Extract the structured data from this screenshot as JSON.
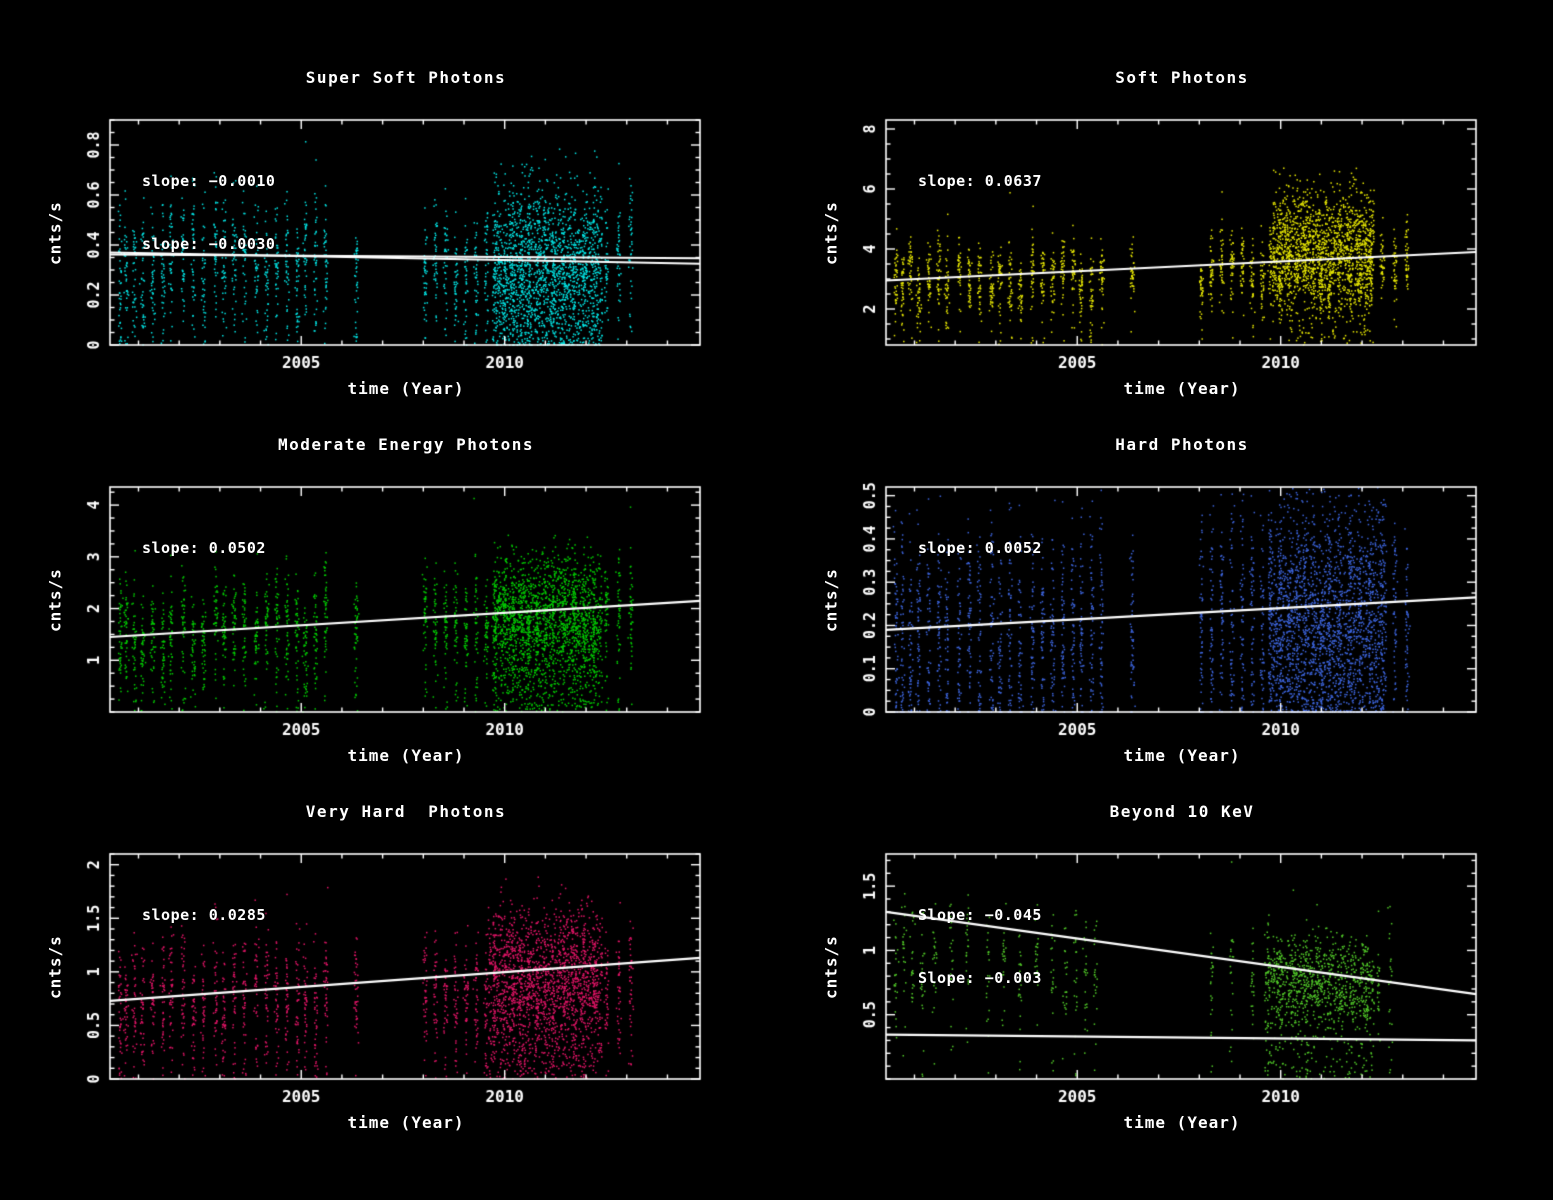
{
  "figure": {
    "background": "#000000",
    "axis_color": "#FFFFFF",
    "trend_color": "#FFFFFF"
  },
  "chart_data": [
    {
      "type": "scatter",
      "title": "Super Soft Photons",
      "xlabel": "time (Year)",
      "ylabel": "cnts/s",
      "point_color": "#00E4E4",
      "slope_labels": [
        "slope: −0.0010",
        "slope: −0.0030"
      ],
      "xlim": [
        2000.3,
        2014.8
      ],
      "ylim": [
        0,
        0.9
      ],
      "xticks": [
        2005,
        2010
      ],
      "yticks": [
        0,
        0.2,
        0.4,
        0.6,
        0.8
      ],
      "ytick_labels": [
        "0",
        "0.2",
        "0.4",
        "0.6",
        "0.8"
      ],
      "ytick_minor": 0.05,
      "trend_lines": [
        {
          "y_start": 0.362,
          "y_end": 0.347
        },
        {
          "y_start": 0.37,
          "y_end": 0.325
        }
      ],
      "scatter": {
        "seed": 11,
        "points_per_epoch": 40,
        "epochs": [
          2000.55,
          2000.7,
          2000.9,
          2001.1,
          2001.35,
          2001.6,
          2001.8,
          2002.1,
          2002.35,
          2002.6,
          2002.9,
          2003.1,
          2003.35,
          2003.6,
          2003.9,
          2004.15,
          2004.4,
          2004.65,
          2004.9,
          2005.1,
          2005.35,
          2005.6,
          2006.35,
          2008.05,
          2008.3,
          2008.55,
          2008.8,
          2009.05,
          2009.3,
          2009.55,
          2009.75,
          2010.0,
          2010.2,
          2010.4,
          2010.6,
          2010.8,
          2011.0,
          2011.2,
          2011.45,
          2011.7,
          2011.95,
          2012.2,
          2012.5,
          2012.8,
          2013.1
        ],
        "mean_start": 0.34,
        "mean_end": 0.33,
        "spread": 0.12,
        "epoch_offset": 0.06,
        "tail_fraction": 0.22,
        "blob": {
          "x_start": 2009.7,
          "x_end": 2012.4,
          "n": 1600,
          "mean": 0.33,
          "spread": 0.16
        }
      }
    },
    {
      "type": "scatter",
      "title": "Soft Photons",
      "xlabel": "time (Year)",
      "ylabel": "cnts/s",
      "point_color": "#E6E600",
      "slope_labels": [
        "slope: 0.0637"
      ],
      "xlim": [
        2000.3,
        2014.8
      ],
      "ylim": [
        0.8,
        8.3
      ],
      "xticks": [
        2005,
        2010
      ],
      "yticks": [
        2,
        4,
        6,
        8
      ],
      "ytick_labels": [
        "2",
        "4",
        "6",
        "8"
      ],
      "ytick_minor": 0.5,
      "trend_lines": [
        {
          "y_start": 2.95,
          "y_end": 3.9
        }
      ],
      "scatter": {
        "seed": 22,
        "points_per_epoch": 40,
        "epochs": [
          2000.55,
          2000.7,
          2000.9,
          2001.1,
          2001.35,
          2001.6,
          2001.8,
          2002.1,
          2002.35,
          2002.6,
          2002.9,
          2003.1,
          2003.35,
          2003.6,
          2003.9,
          2004.15,
          2004.4,
          2004.65,
          2004.9,
          2005.1,
          2005.35,
          2005.6,
          2006.35,
          2008.05,
          2008.3,
          2008.55,
          2008.8,
          2009.05,
          2009.3,
          2009.55,
          2009.75,
          2010.0,
          2010.2,
          2010.4,
          2010.6,
          2010.8,
          2011.0,
          2011.2,
          2011.45,
          2011.7,
          2011.95,
          2012.2,
          2012.5,
          2012.8,
          2013.1
        ],
        "mean_start": 2.9,
        "mean_end": 3.4,
        "spread": 0.55,
        "epoch_offset": 0.45,
        "tail_fraction": 0.1,
        "blob": {
          "x_start": 2009.8,
          "x_end": 2012.3,
          "n": 1500,
          "mean": 4.1,
          "spread": 0.95
        }
      }
    },
    {
      "type": "scatter",
      "title": "Moderate Energy Photons",
      "xlabel": "time (Year)",
      "ylabel": "cnts/s",
      "point_color": "#00CC00",
      "slope_labels": [
        "slope: 0.0502"
      ],
      "xlim": [
        2000.3,
        2014.8
      ],
      "ylim": [
        0,
        4.35
      ],
      "xticks": [
        2005,
        2010
      ],
      "yticks": [
        1,
        2,
        3,
        4
      ],
      "ytick_labels": [
        "1",
        "2",
        "3",
        "4"
      ],
      "ytick_minor": 0.25,
      "trend_lines": [
        {
          "y_start": 1.45,
          "y_end": 2.15
        }
      ],
      "scatter": {
        "seed": 33,
        "points_per_epoch": 45,
        "epochs": [
          2000.55,
          2000.7,
          2000.9,
          2001.1,
          2001.35,
          2001.6,
          2001.8,
          2002.1,
          2002.35,
          2002.6,
          2002.9,
          2003.1,
          2003.35,
          2003.6,
          2003.9,
          2004.15,
          2004.4,
          2004.65,
          2004.9,
          2005.1,
          2005.35,
          2005.6,
          2006.35,
          2008.05,
          2008.3,
          2008.55,
          2008.8,
          2009.05,
          2009.3,
          2009.55,
          2009.75,
          2010.0,
          2010.2,
          2010.4,
          2010.6,
          2010.8,
          2011.0,
          2011.2,
          2011.45,
          2011.7,
          2011.95,
          2012.2,
          2012.5,
          2012.8,
          2013.1
        ],
        "mean_start": 1.5,
        "mean_end": 2.0,
        "spread": 0.45,
        "epoch_offset": 0.3,
        "tail_fraction": 0.2,
        "blob": {
          "x_start": 2009.7,
          "x_end": 2012.4,
          "n": 1600,
          "mean": 1.9,
          "spread": 0.6
        }
      }
    },
    {
      "type": "scatter",
      "title": "Hard Photons",
      "xlabel": "time (Year)",
      "ylabel": "cnts/s",
      "point_color": "#3C64DC",
      "slope_labels": [
        "slope: 0.0052"
      ],
      "xlim": [
        2000.3,
        2014.8
      ],
      "ylim": [
        0,
        0.52
      ],
      "xticks": [
        2005,
        2010
      ],
      "yticks": [
        0,
        0.1,
        0.2,
        0.3,
        0.4,
        0.5
      ],
      "ytick_labels": [
        "0",
        "0.1",
        "0.2",
        "0.3",
        "0.4",
        "0.5"
      ],
      "ytick_minor": 0.025,
      "trend_lines": [
        {
          "y_start": 0.19,
          "y_end": 0.265
        }
      ],
      "scatter": {
        "seed": 44,
        "points_per_epoch": 55,
        "epochs": [
          2000.55,
          2000.7,
          2000.9,
          2001.1,
          2001.35,
          2001.6,
          2001.8,
          2002.1,
          2002.35,
          2002.6,
          2002.9,
          2003.1,
          2003.35,
          2003.6,
          2003.9,
          2004.15,
          2004.4,
          2004.65,
          2004.9,
          2005.1,
          2005.35,
          2005.6,
          2006.35,
          2008.05,
          2008.3,
          2008.55,
          2008.8,
          2009.05,
          2009.3,
          2009.55,
          2009.75,
          2010.0,
          2010.2,
          2010.4,
          2010.6,
          2010.8,
          2011.0,
          2011.2,
          2011.45,
          2011.7,
          2011.95,
          2012.2,
          2012.5,
          2012.8,
          2013.1
        ],
        "mean_start": 0.19,
        "mean_end": 0.26,
        "spread": 0.12,
        "epoch_offset": 0.04,
        "tail_fraction": 0.25,
        "blob": {
          "x_start": 2009.7,
          "x_end": 2012.6,
          "n": 1700,
          "mean": 0.23,
          "spread": 0.12
        }
      }
    },
    {
      "type": "scatter",
      "title": "Very Hard  Photons",
      "xlabel": "time (Year)",
      "ylabel": "cnts/s",
      "point_color": "#E01466",
      "slope_labels": [
        "slope: 0.0285"
      ],
      "xlim": [
        2000.3,
        2014.8
      ],
      "ylim": [
        0,
        2.1
      ],
      "xticks": [
        2005,
        2010
      ],
      "yticks": [
        0,
        0.5,
        1,
        1.5,
        2
      ],
      "ytick_labels": [
        "0",
        "0.5",
        "1",
        "1.5",
        "2"
      ],
      "ytick_minor": 0.1,
      "trend_lines": [
        {
          "y_start": 0.73,
          "y_end": 1.13
        }
      ],
      "scatter": {
        "seed": 55,
        "points_per_epoch": 40,
        "epochs": [
          2000.55,
          2000.7,
          2000.9,
          2001.1,
          2001.35,
          2001.6,
          2001.8,
          2002.1,
          2002.35,
          2002.6,
          2002.9,
          2003.1,
          2003.35,
          2003.6,
          2003.9,
          2004.15,
          2004.4,
          2004.65,
          2004.9,
          2005.1,
          2005.35,
          2005.6,
          2006.35,
          2008.05,
          2008.3,
          2008.55,
          2008.8,
          2009.05,
          2009.3,
          2009.55,
          2009.75,
          2010.0,
          2010.2,
          2010.4,
          2010.6,
          2010.8,
          2011.0,
          2011.2,
          2011.45,
          2011.7,
          2011.95,
          2012.2,
          2012.5,
          2012.8,
          2013.1
        ],
        "mean_start": 0.75,
        "mean_end": 1.02,
        "spread": 0.25,
        "epoch_offset": 0.12,
        "tail_fraction": 0.25,
        "blob": {
          "x_start": 2009.6,
          "x_end": 2012.4,
          "n": 1500,
          "mean": 1.0,
          "spread": 0.3
        }
      }
    },
    {
      "type": "scatter",
      "title": "Beyond 10 KeV",
      "xlabel": "time (Year)",
      "ylabel": "cnts/s",
      "point_color": "#50C828",
      "slope_labels": [
        "Slope: −0.045",
        "Slope: −0.003"
      ],
      "xlim": [
        2000.3,
        2014.8
      ],
      "ylim": [
        0,
        1.75
      ],
      "xticks": [
        2005,
        2010
      ],
      "yticks": [
        0.5,
        1,
        1.5
      ],
      "ytick_labels": [
        "0.5",
        "1",
        "1.5"
      ],
      "ytick_minor": 0.1,
      "trend_lines": [
        {
          "y_start": 1.3,
          "y_end": 0.66
        },
        {
          "y_start": 0.345,
          "y_end": 0.3
        }
      ],
      "scatter": {
        "seed": 66,
        "points_per_epoch": 22,
        "epochs": [
          2000.55,
          2000.75,
          2000.95,
          2001.2,
          2001.5,
          2001.9,
          2002.3,
          2002.8,
          2003.2,
          2003.6,
          2004.0,
          2004.4,
          2004.7,
          2004.95,
          2005.2,
          2005.45,
          2008.3,
          2008.8,
          2009.3,
          2009.7,
          2010.0,
          2010.3,
          2010.6,
          2010.9,
          2011.2,
          2011.5,
          2011.8,
          2012.1,
          2012.4,
          2012.7
        ],
        "mean_start": 1.0,
        "mean_end": 0.72,
        "spread": 0.2,
        "epoch_offset": 0.12,
        "tail_fraction": 0.18,
        "blob": {
          "x_start": 2009.6,
          "x_end": 2012.3,
          "n": 900,
          "mean": 0.78,
          "spread": 0.17
        }
      }
    }
  ]
}
